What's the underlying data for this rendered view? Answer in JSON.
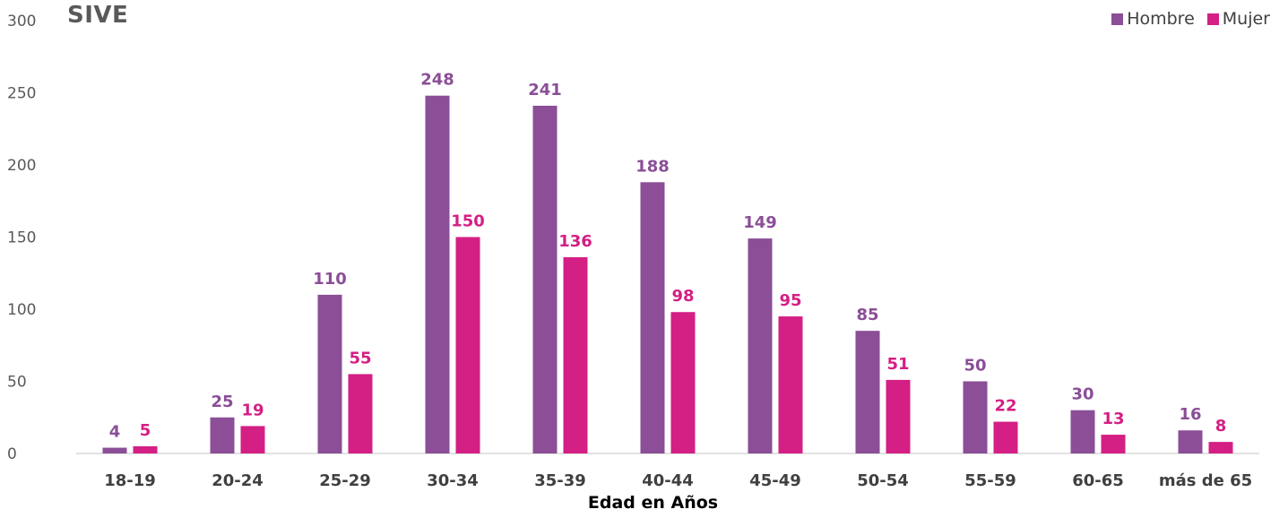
{
  "chart_data": {
    "type": "bar",
    "title": "SIVE",
    "xlabel": "Edad en Años",
    "ylabel": "",
    "ylim": [
      0,
      300
    ],
    "yticks": [
      0,
      50,
      100,
      150,
      200,
      250,
      300
    ],
    "legend_position": "top-right",
    "grid": false,
    "categories": [
      "18-19",
      "20-24",
      "25-29",
      "30-34",
      "35-39",
      "40-44",
      "45-49",
      "50-54",
      "55-59",
      "60-65",
      "más de 65"
    ],
    "series": [
      {
        "name": "Hombre",
        "color": "#8B4E97",
        "values": [
          4,
          25,
          110,
          248,
          241,
          188,
          149,
          85,
          50,
          30,
          16
        ]
      },
      {
        "name": "Mujer",
        "color": "#D41F84",
        "values": [
          5,
          19,
          55,
          150,
          136,
          98,
          95,
          51,
          22,
          13,
          8
        ]
      }
    ]
  }
}
